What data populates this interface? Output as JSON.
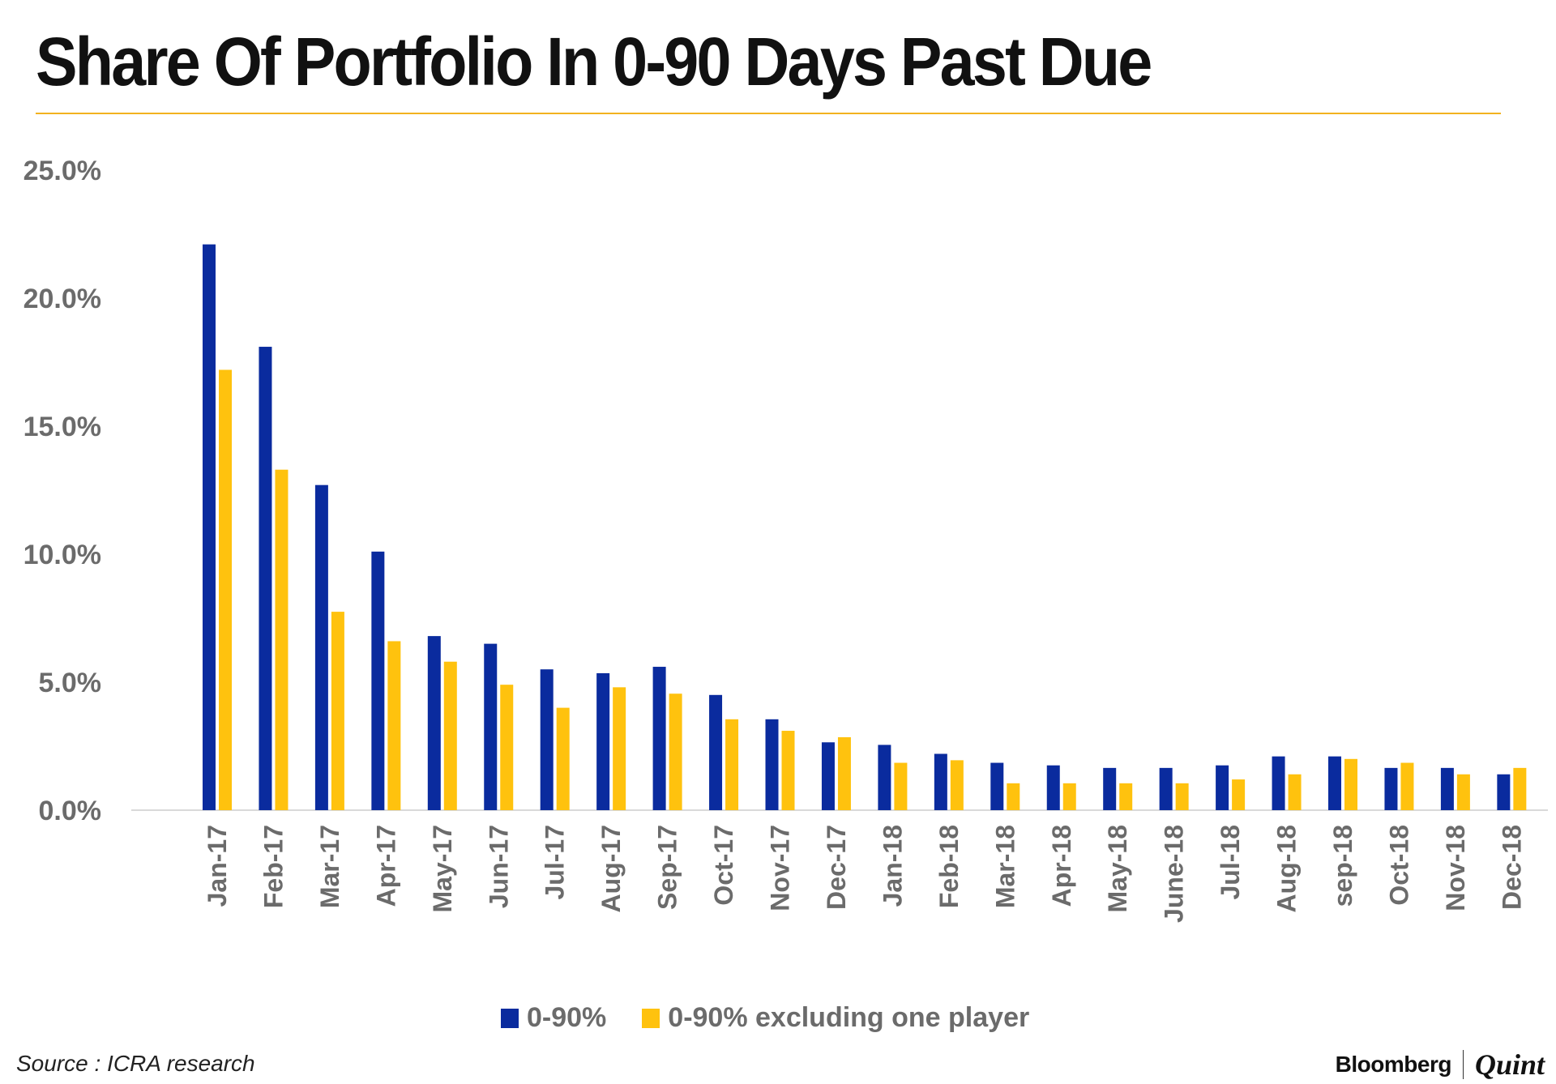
{
  "title": "Share Of Portfolio In 0-90 Days Past Due",
  "source": "Source : ICRA research",
  "brand": {
    "primary": "Bloomberg",
    "secondary": "Quint"
  },
  "colors": {
    "series_1": "#0a2b9e",
    "series_2": "#ffc20e",
    "title_rule": "#f2b21f",
    "axis_text": "#6b6b6b"
  },
  "chart_data": {
    "type": "bar",
    "title": "Share Of Portfolio In 0-90 Days Past Due",
    "xlabel": "",
    "ylabel": "",
    "ylim": [
      0,
      25
    ],
    "yticks": [
      "0.0%",
      "5.0%",
      "10.0%",
      "15.0%",
      "20.0%",
      "25.0%"
    ],
    "ytick_values": [
      0,
      5,
      10,
      15,
      20,
      25
    ],
    "grid": false,
    "legend_position": "bottom-center",
    "categories": [
      "Jan-17",
      "Feb-17",
      "Mar-17",
      "Apr-17",
      "May-17",
      "Jun-17",
      "Jul-17",
      "Aug-17",
      "Sep-17",
      "Oct-17",
      "Nov-17",
      "Dec-17",
      "Jan-18",
      "Feb-18",
      "Mar-18",
      "Apr-18",
      "May-18",
      "June-18",
      "Jul-18",
      "Aug-18",
      "sep-18",
      "Oct-18",
      "Nov-18",
      "Dec-18"
    ],
    "series": [
      {
        "name": "0-90%",
        "color": "#0a2b9e",
        "values": [
          22.1,
          18.1,
          12.7,
          10.1,
          6.8,
          6.5,
          5.5,
          5.35,
          5.6,
          4.5,
          3.55,
          2.65,
          2.55,
          2.2,
          1.85,
          1.75,
          1.65,
          1.65,
          1.75,
          2.1,
          2.1,
          1.65,
          1.65,
          1.4
        ]
      },
      {
        "name": "0-90% excluding one player",
        "color": "#ffc20e",
        "values": [
          17.2,
          13.3,
          7.75,
          6.6,
          5.8,
          4.9,
          4.0,
          4.8,
          4.55,
          3.55,
          3.1,
          2.85,
          1.85,
          1.95,
          1.05,
          1.05,
          1.05,
          1.05,
          1.2,
          1.4,
          2.0,
          1.85,
          1.4,
          1.65
        ]
      }
    ]
  }
}
